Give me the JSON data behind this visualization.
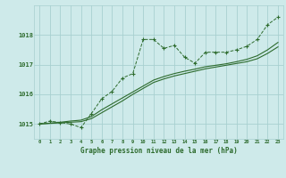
{
  "title": "Graphe pression niveau de la mer (hPa)",
  "bg_color": "#ceeaea",
  "grid_color": "#a8d0d0",
  "line_color": "#2d6b2d",
  "x_ticks": [
    0,
    1,
    2,
    3,
    4,
    5,
    6,
    7,
    8,
    9,
    10,
    11,
    12,
    13,
    14,
    15,
    16,
    17,
    18,
    19,
    20,
    21,
    22,
    23
  ],
  "ylim": [
    1014.5,
    1019.0
  ],
  "yticks": [
    1015,
    1016,
    1017,
    1018
  ],
  "line1": [
    1015.0,
    1015.1,
    1015.05,
    1015.0,
    1014.88,
    1015.35,
    1015.85,
    1016.1,
    1016.55,
    1016.7,
    1017.85,
    1017.85,
    1017.55,
    1017.65,
    1017.25,
    1017.05,
    1017.42,
    1017.42,
    1017.42,
    1017.5,
    1017.62,
    1017.85,
    1018.35,
    1018.6
  ],
  "line2": [
    1015.0,
    1015.02,
    1015.04,
    1015.06,
    1015.08,
    1015.18,
    1015.38,
    1015.58,
    1015.78,
    1016.0,
    1016.2,
    1016.4,
    1016.52,
    1016.62,
    1016.7,
    1016.78,
    1016.86,
    1016.92,
    1016.98,
    1017.04,
    1017.1,
    1017.2,
    1017.38,
    1017.6
  ],
  "line3": [
    1015.0,
    1015.03,
    1015.06,
    1015.1,
    1015.13,
    1015.25,
    1015.48,
    1015.68,
    1015.88,
    1016.08,
    1016.28,
    1016.48,
    1016.6,
    1016.7,
    1016.78,
    1016.85,
    1016.93,
    1016.98,
    1017.03,
    1017.1,
    1017.18,
    1017.3,
    1017.5,
    1017.75
  ]
}
